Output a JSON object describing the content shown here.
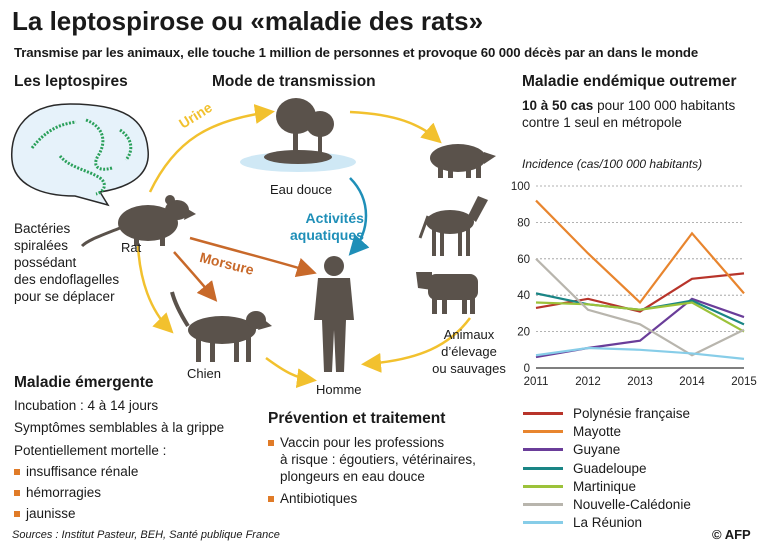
{
  "title": "La leptospirose ou «maladie des rats»",
  "subtitle": "Transmise par les animaux, elle touche 1 million de personnes et provoque 60 000 décès par an dans le monde",
  "sections": {
    "leptospires": {
      "heading": "Les leptospires",
      "lines": [
        "Bactéries",
        "spiralées",
        "possédant",
        "des endoflagelles",
        "pour se déplacer"
      ]
    },
    "transmission": {
      "heading": "Mode de transmission",
      "labels": {
        "urine": "Urine",
        "morsure": "Morsure",
        "activites": [
          "Activités",
          "aquatiques"
        ],
        "eau": "Eau douce",
        "rat": "Rat",
        "chien": "Chien",
        "homme": "Homme",
        "animaux": [
          "Animaux",
          "d’élevage",
          "ou sauvages"
        ]
      }
    },
    "endemic": {
      "heading": "Maladie endémique outremer",
      "line1_bold": "10 à 50 cas",
      "line1_rest": " pour 100 000 habitants",
      "line2": "contre 1 seul en métropole",
      "incidence": "Incidence (cas/100 000 habitants)"
    },
    "emergente": {
      "heading": "Maladie émergente",
      "incubation": "Incubation : 4 à 14 jours",
      "symptomes": "Symptômes semblables à la grippe",
      "mortelle": "Potentiellement mortelle :",
      "items": [
        "insuffisance rénale",
        "hémorragies",
        "jaunisse"
      ]
    },
    "prevention": {
      "heading": "Prévention et traitement",
      "items": [
        [
          "Vaccin pour les professions",
          "à risque : égoutiers, vétérinaires,",
          "plongeurs en eau douce"
        ],
        [
          "Antibiotiques"
        ]
      ]
    }
  },
  "sources": "Sources : Institut Pasteur, BEH, Santé publique France",
  "brand": "© AFP",
  "colors": {
    "arrow_yellow": "#f2c12e",
    "arrow_orange": "#c8692a",
    "arrow_blue": "#1f8fb8",
    "bullet": "#e07b28",
    "silhouette": "#5a524b"
  },
  "chart_data": {
    "type": "line",
    "x": [
      "2011",
      "2012",
      "2013",
      "2014",
      "2015"
    ],
    "ylim": [
      0,
      100
    ],
    "yticks": [
      "0",
      "20",
      "40",
      "60",
      "80",
      "100"
    ],
    "series": [
      {
        "name": "Polynésie française",
        "color": "#b8342a",
        "values": [
          33,
          38,
          31,
          49,
          52
        ]
      },
      {
        "name": "Mayotte",
        "color": "#e8852e",
        "values": [
          92,
          63,
          36,
          74,
          41
        ]
      },
      {
        "name": "Guyane",
        "color": "#6a3d99",
        "values": [
          6,
          11,
          15,
          38,
          28
        ]
      },
      {
        "name": "Guadeloupe",
        "color": "#1a8585",
        "values": [
          41,
          35,
          32,
          37,
          24
        ]
      },
      {
        "name": "Martinique",
        "color": "#9cc23a",
        "values": [
          36,
          35,
          32,
          36,
          20
        ]
      },
      {
        "name": "Nouvelle-Calédonie",
        "color": "#b8b5ad",
        "values": [
          60,
          32,
          24,
          7,
          21
        ]
      },
      {
        "name": "La Réunion",
        "color": "#87cde8",
        "values": [
          7,
          11,
          10,
          8,
          5
        ]
      }
    ]
  }
}
